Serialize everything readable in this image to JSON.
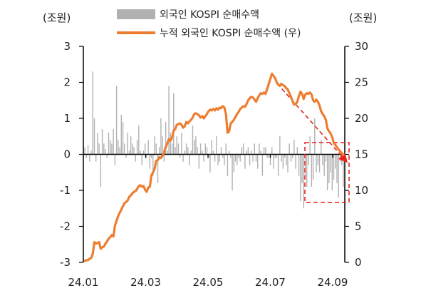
{
  "chart_data": {
    "type": "bar+line",
    "left_unit": "(조원)",
    "right_unit": "(조원)",
    "left_axis": {
      "range": [
        -3,
        3
      ],
      "ticks": [
        "3",
        "2",
        "1",
        "0",
        "-1",
        "-2",
        "-3"
      ]
    },
    "right_axis": {
      "range": [
        0,
        30
      ],
      "ticks": [
        "30",
        "25",
        "20",
        "15",
        "10",
        "5",
        "0"
      ]
    },
    "x_ticks": [
      "24.01",
      "24.03",
      "24.05",
      "24.07",
      "24.09"
    ],
    "legend": [
      {
        "label": "외국인 KOSPI 순매수액",
        "kind": "bar"
      },
      {
        "label": "누적 외국인 KOSPI 순매수액 (우)",
        "kind": "line"
      }
    ],
    "colors": {
      "bar": "#b1b1b1",
      "line": "#ed7d31",
      "annotation": "#e8221b",
      "axis": "#000000"
    },
    "series_daily": {
      "name": "외국인 KOSPI 순매수액",
      "axis": "left",
      "values": [
        0.2,
        -0.1,
        0.25,
        -0.2,
        0.1,
        2.3,
        1.0,
        -0.2,
        0.6,
        0.3,
        -0.9,
        0.7,
        0.3,
        0.15,
        -0.1,
        0.6,
        0.4,
        0.3,
        0.7,
        -0.3,
        1.9,
        0.4,
        0.2,
        1.1,
        0.9,
        0.3,
        -0.1,
        0.6,
        0.1,
        0.5,
        0.3,
        0.2,
        -0.2,
        0.4,
        0.8,
        0.1,
        -0.3,
        0.1,
        0.3,
        -0.1,
        0.4,
        -0.4,
        -0.1,
        -0.6,
        0.5,
        0.3,
        -0.8,
        0.2,
        1.0,
        0.5,
        -0.2,
        0.9,
        0.1,
        1.9,
        0.6,
        0.3,
        1.7,
        0.2,
        0.5,
        0.3,
        -0.1,
        0.6,
        -0.2,
        0.1,
        0.3,
        0.2,
        -0.3,
        0.1,
        0.8,
        0.4,
        0.5,
        0.2,
        -0.4,
        0.3,
        0.1,
        -0.2,
        0.3,
        0.2,
        -0.1,
        -0.5,
        0.4,
        0.1,
        -0.2,
        0.5,
        -0.3,
        -0.2,
        0.2,
        -0.1,
        -0.3,
        0.3,
        -0.6,
        0.1,
        -0.1,
        -1.0,
        -0.5,
        -0.2,
        -0.3,
        -0.1,
        -0.2,
        0.2,
        0.3,
        -0.4,
        0.1,
        0.2,
        -0.3,
        0.1,
        -0.2,
        0.3,
        -0.2,
        -0.4,
        0.3,
        0.1,
        -0.6,
        0.2,
        0.2,
        -0.1,
        -0.1,
        -0.3,
        0.2,
        -0.4,
        -0.1,
        -0.1,
        -0.6,
        0.5,
        -0.2,
        -0.4,
        -0.1,
        -0.3,
        -0.5,
        0.3,
        -0.2,
        -0.1,
        0.4,
        -0.4,
        0.2,
        -0.6,
        -1.3,
        -0.8,
        -1.5,
        -0.6,
        -0.9,
        -0.3,
        0.5,
        -0.9,
        -0.7,
        1.0,
        -0.5,
        -0.3,
        -0.5,
        0.4,
        -0.3,
        -0.6,
        -0.2,
        -1.0,
        -0.8,
        -0.5,
        -1.0,
        -0.7,
        -0.4,
        -0.8,
        -1.2,
        -0.2,
        -0.3,
        -0.9
      ]
    },
    "series_cumulative": {
      "name": "누적 외국인 KOSPI 순매수액 (우)",
      "axis": "right",
      "values": [
        0.2,
        0.3,
        0.3,
        0.5,
        0.6,
        1.2,
        2.8,
        2.6,
        2.7,
        2.8,
        1.9,
        2.1,
        2.2,
        2.6,
        2.9,
        3.3,
        3.5,
        3.8,
        3.6,
        5.1,
        5.8,
        6.4,
        6.9,
        7.3,
        7.8,
        8.2,
        8.4,
        8.6,
        9.1,
        9.3,
        9.6,
        9.8,
        9.9,
        10.2,
        10.6,
        10.7,
        10.5,
        10.6,
        10.1,
        9.8,
        10.4,
        10.5,
        12.1,
        12.5,
        13.0,
        14.1,
        14.2,
        14.6,
        14.5,
        14.8,
        15.3,
        16.0,
        16.5,
        17.1,
        16.9,
        17.3,
        18.3,
        18.5,
        19.1,
        19.2,
        19.3,
        19.1,
        18.7,
        18.9,
        19.5,
        19.3,
        19.6,
        19.8,
        20.1,
        20.6,
        20.7,
        20.6,
        20.4,
        20.1,
        20.3,
        20.0,
        20.3,
        20.6,
        21.0,
        21.2,
        21.1,
        21.3,
        21.1,
        21.4,
        21.2,
        21.5,
        21.4,
        21.7,
        21.5,
        20.6,
        18.0,
        18.2,
        19.3,
        19.5,
        19.8,
        20.2,
        20.6,
        20.9,
        21.3,
        21.5,
        21.7,
        21.6,
        22.0,
        22.5,
        22.8,
        23.0,
        22.9,
        22.6,
        22.3,
        22.8,
        23.2,
        23.5,
        23.4,
        23.6,
        23.4,
        24.1,
        24.8,
        25.5,
        26.2,
        25.9,
        25.6,
        25.0,
        24.7,
        24.5,
        24.8,
        24.6,
        24.5,
        24.2,
        24.0,
        23.5,
        23.0,
        22.4,
        21.9,
        22.0,
        22.3,
        23.1,
        23.7,
        23.4,
        22.7,
        23.3,
        23.5,
        23.4,
        23.6,
        23.3,
        22.5,
        22.3,
        22.6,
        22.3,
        21.8,
        21.0,
        20.6,
        20.3,
        19.8,
        18.6,
        18.2,
        17.9,
        17.4,
        16.6,
        16.3,
        16.0,
        15.7,
        15.4,
        15.2,
        14.9
      ]
    }
  }
}
